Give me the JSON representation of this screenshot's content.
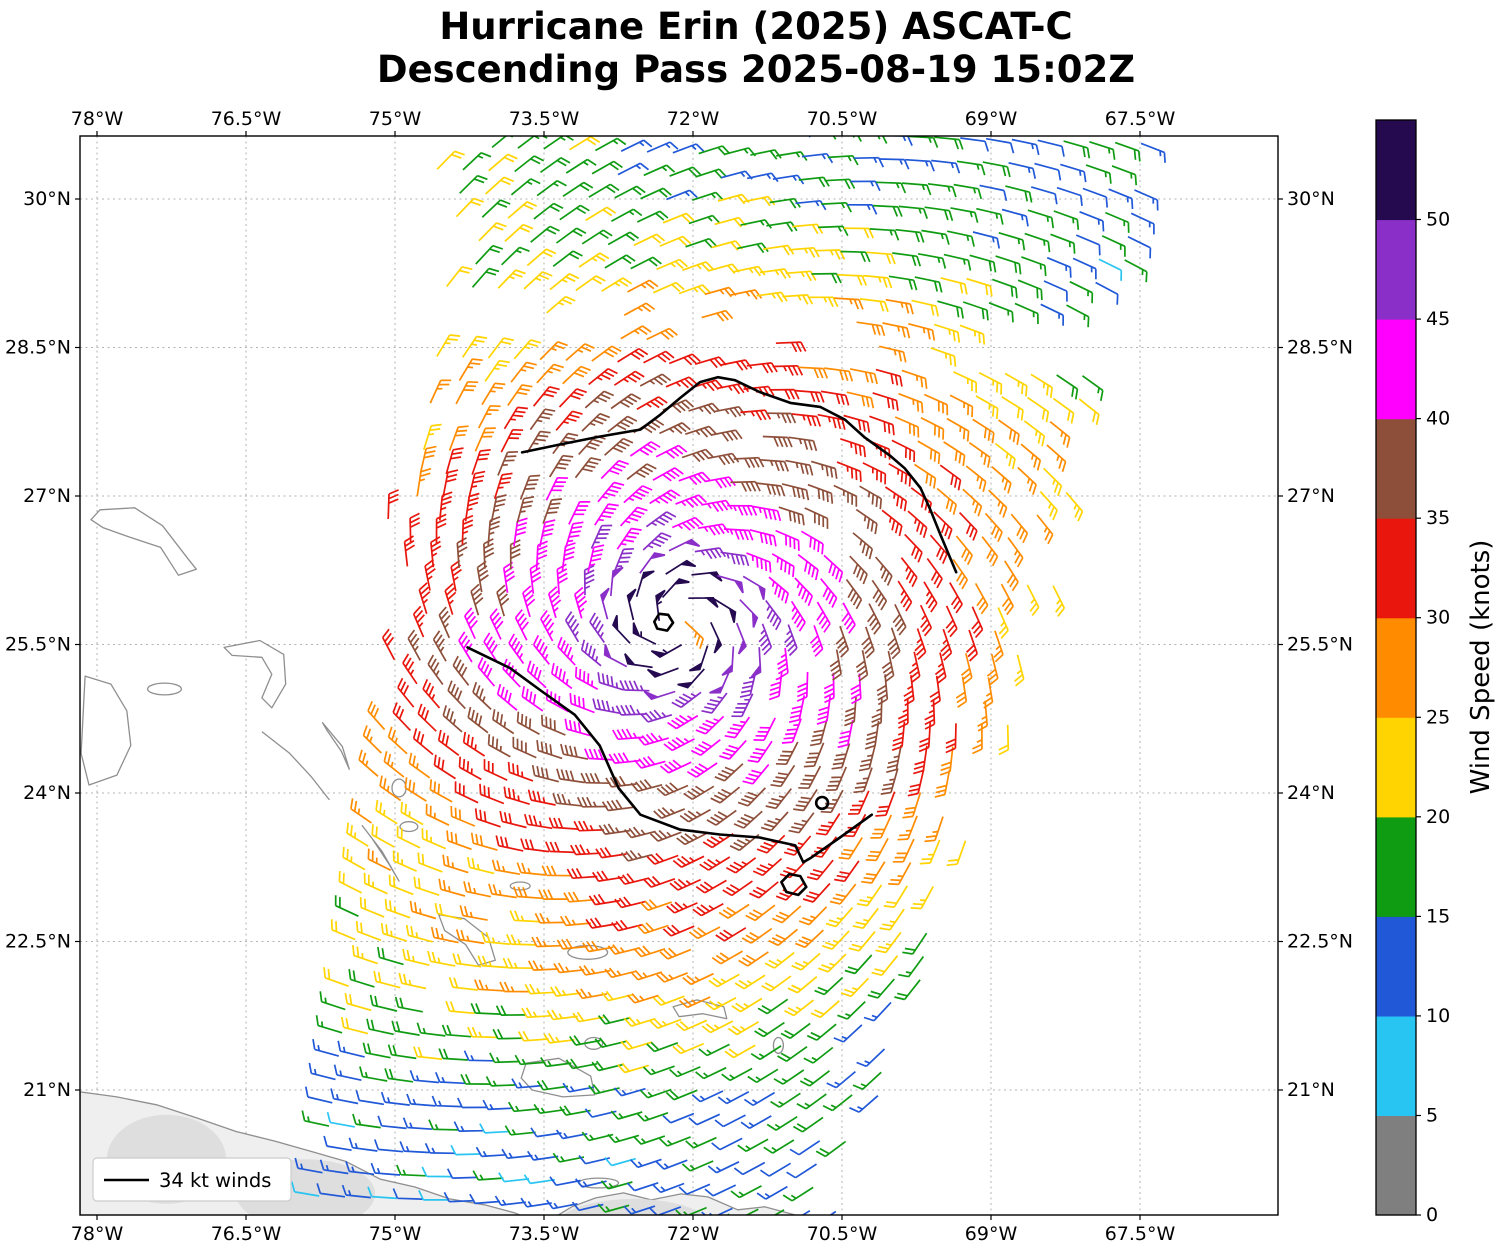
{
  "title": {
    "line1": "Hurricane Erin (2025) ASCAT-C",
    "line2": "Descending Pass 2025-08-19 15:02Z"
  },
  "legend": {
    "label": "34 kt winds"
  },
  "colorbar": {
    "label": "Wind Speed (knots)",
    "tick_labels": [
      "0",
      "5",
      "10",
      "15",
      "20",
      "25",
      "30",
      "35",
      "40",
      "45",
      "50"
    ],
    "min_kt": 0,
    "max_kt": 55,
    "band_colors_bottom_to_top": [
      "#7f7f7f",
      "#29c5f2",
      "#2058d8",
      "#0f9b12",
      "#ffd400",
      "#ff8c00",
      "#e8160c",
      "#8e4f3a",
      "#ff00ff",
      "#8b2fc9",
      "#250a50"
    ]
  },
  "axes": {
    "lon_range": [
      -78.171,
      -66.111
    ],
    "lat_range": [
      19.737,
      30.636
    ],
    "lon_ticks": [
      {
        "value": -78.0,
        "label": "78°W"
      },
      {
        "value": -76.5,
        "label": "76.5°W"
      },
      {
        "value": -75.0,
        "label": "75°W"
      },
      {
        "value": -73.5,
        "label": "73.5°W"
      },
      {
        "value": -72.0,
        "label": "72°W"
      },
      {
        "value": -70.5,
        "label": "70.5°W"
      },
      {
        "value": -69.0,
        "label": "69°W"
      },
      {
        "value": -67.5,
        "label": "67.5°W"
      }
    ],
    "lat_ticks": [
      {
        "value": 30.0,
        "label": "30°N"
      },
      {
        "value": 28.5,
        "label": "28.5°N"
      },
      {
        "value": 27.0,
        "label": "27°N"
      },
      {
        "value": 25.5,
        "label": "25.5°N"
      },
      {
        "value": 24.0,
        "label": "24°N"
      },
      {
        "value": 22.5,
        "label": "22.5°N"
      },
      {
        "value": 21.0,
        "label": "21°N"
      }
    ]
  },
  "chart_data": {
    "type": "wind-barb-map",
    "satellite": "ASCAT-C",
    "pass": "Descending",
    "valid_time": "2025-08-19 15:02Z",
    "speed_unit": "kt",
    "wind_speed_bin_edges_kt": [
      0,
      5,
      10,
      15,
      20,
      25,
      30,
      35,
      40,
      45,
      50,
      55
    ],
    "storm": {
      "name": "Hurricane Erin",
      "center_lon": -72.15,
      "center_lat": 25.7,
      "profile_radius_deg": [
        0,
        0.45,
        0.8,
        1.45,
        2.15,
        2.65,
        3.2,
        4.0,
        5.0,
        6.2,
        8.0,
        10.0
      ],
      "profile_speed_kt": [
        54,
        51,
        46.5,
        41,
        36,
        31,
        26,
        21,
        16.5,
        13.5,
        10,
        8
      ],
      "inflow_deg": 20,
      "eye_calm_radius_deg": 0.16,
      "eye_speed_kt": 26,
      "lon_scale_cos_lat": 0.91
    },
    "swath": {
      "lat_start": 19.85,
      "lat_step": 0.235,
      "rows": 47,
      "lon_step": 0.26,
      "center_lon_at_lat20_3": -73.05,
      "center_lon_slope_per_deg_lat": 0.22,
      "half_width_at_lat20_3": 2.65,
      "half_width_slope_per_deg_lat": 0.08,
      "row_tilt_dlat_per_dlon": -0.03,
      "gap_lat_band": [
        28.5,
        28.99
      ]
    },
    "contour_34kt": {
      "label": "34 kt winds",
      "open_lines": [
        {
          "name": "north",
          "points": [
            [
              -73.72,
              27.44
            ],
            [
              -73.34,
              27.52
            ],
            [
              -72.94,
              27.6
            ],
            [
              -72.53,
              27.67
            ],
            [
              -72.33,
              27.82
            ],
            [
              -72.13,
              27.99
            ],
            [
              -71.93,
              28.15
            ],
            [
              -71.75,
              28.2
            ],
            [
              -71.58,
              28.17
            ],
            [
              -71.33,
              28.05
            ],
            [
              -71.02,
              27.94
            ],
            [
              -70.72,
              27.9
            ],
            [
              -70.47,
              27.77
            ],
            [
              -70.27,
              27.59
            ],
            [
              -70.02,
              27.41
            ],
            [
              -69.87,
              27.28
            ],
            [
              -69.71,
              27.08
            ],
            [
              -69.61,
              26.86
            ],
            [
              -69.51,
              26.61
            ],
            [
              -69.41,
              26.37
            ],
            [
              -69.35,
              26.23
            ]
          ]
        },
        {
          "name": "south",
          "points": [
            [
              -74.27,
              25.47
            ],
            [
              -73.84,
              25.26
            ],
            [
              -73.54,
              25.04
            ],
            [
              -73.19,
              24.79
            ],
            [
              -72.94,
              24.48
            ],
            [
              -72.75,
              24.05
            ],
            [
              -72.53,
              23.78
            ],
            [
              -72.13,
              23.63
            ],
            [
              -71.73,
              23.58
            ],
            [
              -71.33,
              23.55
            ],
            [
              -70.97,
              23.47
            ],
            [
              -70.89,
              23.3
            ],
            [
              -70.82,
              23.34
            ],
            [
              -70.52,
              23.55
            ],
            [
              -70.2,
              23.78
            ]
          ]
        }
      ],
      "closed_loops": [
        {
          "name": "eye",
          "points": [
            [
              -72.39,
              25.73
            ],
            [
              -72.34,
              25.81
            ],
            [
              -72.25,
              25.8
            ],
            [
              -72.2,
              25.72
            ],
            [
              -72.26,
              25.64
            ],
            [
              -72.36,
              25.66
            ]
          ]
        },
        {
          "name": "southeast-blob",
          "points": [
            [
              -71.11,
              23.1
            ],
            [
              -71.03,
              23.18
            ],
            [
              -70.92,
              23.16
            ],
            [
              -70.86,
              23.05
            ],
            [
              -70.94,
              22.97
            ],
            [
              -71.06,
              23.0
            ]
          ]
        }
      ],
      "circles": [
        {
          "lon": -70.7,
          "lat": 23.9,
          "r_deg": 0.06
        }
      ]
    },
    "coastlines": {
      "filled_land": [
        {
          "name": "cuba",
          "points": [
            [
              -78.17,
              20.98
            ],
            [
              -77.8,
              20.93
            ],
            [
              -77.4,
              20.85
            ],
            [
              -77.0,
              20.72
            ],
            [
              -76.6,
              20.58
            ],
            [
              -76.2,
              20.48
            ],
            [
              -75.85,
              20.38
            ],
            [
              -75.5,
              20.28
            ],
            [
              -75.15,
              20.1
            ],
            [
              -74.8,
              20.02
            ],
            [
              -74.45,
              19.9
            ],
            [
              -74.1,
              19.84
            ],
            [
              -73.8,
              19.76
            ],
            [
              -73.65,
              19.7
            ],
            [
              -73.65,
              19.5
            ],
            [
              -78.17,
              19.5
            ]
          ]
        },
        {
          "name": "hispaniola",
          "points": [
            [
              -73.45,
              19.5
            ],
            [
              -73.45,
              19.68
            ],
            [
              -73.22,
              19.82
            ],
            [
              -72.98,
              19.91
            ],
            [
              -72.7,
              19.96
            ],
            [
              -72.42,
              19.89
            ],
            [
              -72.12,
              19.95
            ],
            [
              -71.85,
              19.92
            ],
            [
              -71.55,
              19.79
            ],
            [
              -71.28,
              19.82
            ],
            [
              -70.98,
              19.74
            ],
            [
              -70.8,
              19.66
            ],
            [
              -70.8,
              19.5
            ]
          ]
        }
      ],
      "terrain_patches": [
        {
          "lon": -77.3,
          "lat": 20.3,
          "rlon": 0.6,
          "rlat": 0.45
        },
        {
          "lon": -75.9,
          "lat": 19.95,
          "rlon": 0.7,
          "rlat": 0.35
        },
        {
          "lon": -72.6,
          "lat": 19.6,
          "rlon": 0.8,
          "rlat": 0.3
        }
      ],
      "island_outlines": [
        {
          "name": "abaco",
          "closed": true,
          "points": [
            [
              -77.97,
              26.86
            ],
            [
              -77.62,
              26.88
            ],
            [
              -77.34,
              26.7
            ],
            [
              -77.08,
              26.36
            ],
            [
              -77.0,
              26.26
            ],
            [
              -77.18,
              26.2
            ],
            [
              -77.36,
              26.48
            ],
            [
              -77.66,
              26.58
            ],
            [
              -77.94,
              26.68
            ],
            [
              -78.06,
              26.76
            ]
          ]
        },
        {
          "name": "andros",
          "closed": true,
          "points": [
            [
              -78.12,
              25.18
            ],
            [
              -77.86,
              25.1
            ],
            [
              -77.7,
              24.83
            ],
            [
              -77.66,
              24.48
            ],
            [
              -77.8,
              24.18
            ],
            [
              -78.08,
              24.08
            ],
            [
              -78.16,
              24.4
            ]
          ]
        },
        {
          "name": "eleuthera",
          "closed": true,
          "points": [
            [
              -76.72,
              25.47
            ],
            [
              -76.36,
              25.54
            ],
            [
              -76.12,
              25.4
            ],
            [
              -76.1,
              25.1
            ],
            [
              -76.24,
              24.86
            ],
            [
              -76.34,
              24.96
            ],
            [
              -76.24,
              25.2
            ],
            [
              -76.34,
              25.37
            ],
            [
              -76.64,
              25.39
            ]
          ]
        },
        {
          "name": "cat-island",
          "closed": true,
          "points": [
            [
              -75.73,
              24.71
            ],
            [
              -75.53,
              24.47
            ],
            [
              -75.46,
              24.24
            ],
            [
              -75.54,
              24.42
            ],
            [
              -75.69,
              24.64
            ]
          ]
        },
        {
          "name": "exuma-chain",
          "closed": false,
          "points": [
            [
              -76.34,
              24.62
            ],
            [
              -76.06,
              24.4
            ],
            [
              -75.84,
              24.16
            ],
            [
              -75.66,
              23.93
            ]
          ]
        },
        {
          "name": "long-island",
          "closed": true,
          "points": [
            [
              -75.33,
              23.67
            ],
            [
              -75.13,
              23.41
            ],
            [
              -74.96,
              23.11
            ],
            [
              -75.06,
              23.28
            ],
            [
              -75.23,
              23.54
            ]
          ]
        },
        {
          "name": "crooked-acklins",
          "closed": true,
          "points": [
            [
              -74.56,
              22.77
            ],
            [
              -74.3,
              22.73
            ],
            [
              -74.06,
              22.54
            ],
            [
              -73.99,
              22.31
            ],
            [
              -74.16,
              22.26
            ],
            [
              -74.29,
              22.47
            ],
            [
              -74.5,
              22.61
            ]
          ]
        },
        {
          "name": "great-inagua",
          "closed": true,
          "points": [
            [
              -73.68,
              21.27
            ],
            [
              -73.35,
              21.32
            ],
            [
              -73.03,
              21.14
            ],
            [
              -72.99,
              20.95
            ],
            [
              -73.31,
              20.93
            ],
            [
              -73.62,
              21.0
            ],
            [
              -73.73,
              21.12
            ]
          ]
        },
        {
          "name": "caicos",
          "closed": true,
          "points": [
            [
              -72.2,
              21.84
            ],
            [
              -71.96,
              21.91
            ],
            [
              -71.69,
              21.84
            ],
            [
              -71.66,
              21.72
            ],
            [
              -71.9,
              21.77
            ],
            [
              -72.14,
              21.74
            ]
          ]
        }
      ],
      "island_ellipses": [
        {
          "name": "new-providence",
          "lon": -77.32,
          "lat": 25.05,
          "rlon": 0.17,
          "rlat": 0.06
        },
        {
          "name": "san-salvador",
          "lon": -74.96,
          "lat": 24.05,
          "rlon": 0.07,
          "rlat": 0.09
        },
        {
          "name": "rum-cay",
          "lon": -74.86,
          "lat": 23.66,
          "rlon": 0.09,
          "rlat": 0.05
        },
        {
          "name": "samana-cay",
          "lon": -73.74,
          "lat": 23.06,
          "rlon": 0.1,
          "rlat": 0.04
        },
        {
          "name": "mayaguana",
          "lon": -73.06,
          "lat": 22.39,
          "rlon": 0.2,
          "rlat": 0.07
        },
        {
          "name": "little-inagua",
          "lon": -73.0,
          "lat": 21.47,
          "rlon": 0.09,
          "rlat": 0.06
        },
        {
          "name": "grand-turk",
          "lon": -71.14,
          "lat": 21.45,
          "rlon": 0.05,
          "rlat": 0.08
        },
        {
          "name": "tortuga",
          "lon": -72.95,
          "lat": 20.06,
          "rlon": 0.2,
          "rlat": 0.05
        }
      ]
    }
  }
}
